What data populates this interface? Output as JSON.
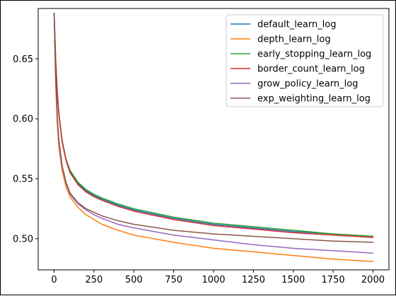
{
  "chart_data": {
    "type": "line",
    "title": "",
    "xlabel": "",
    "ylabel": "",
    "xlim": [
      -100,
      2100
    ],
    "ylim": [
      0.474,
      0.692
    ],
    "x_ticks": [
      0,
      250,
      500,
      750,
      1000,
      1250,
      1500,
      1750,
      2000
    ],
    "y_ticks": [
      0.5,
      0.55,
      0.6,
      0.65
    ],
    "x_tick_labels": [
      "0",
      "250",
      "500",
      "750",
      "1000",
      "1250",
      "1500",
      "1750",
      "2000"
    ],
    "y_tick_labels": [
      "0.50",
      "0.55",
      "0.60",
      "0.65"
    ],
    "grid": false,
    "legend_position": "top-right",
    "x": [
      0,
      5,
      10,
      20,
      30,
      50,
      75,
      100,
      150,
      200,
      250,
      300,
      400,
      500,
      750,
      1000,
      1250,
      1500,
      1750,
      2000
    ],
    "series": [
      {
        "name": "default_learn_log",
        "color": "#1f77b4",
        "values": [
          0.688,
          0.668,
          0.648,
          0.622,
          0.604,
          0.582,
          0.566,
          0.556,
          0.546,
          0.54,
          0.536,
          0.533,
          0.528,
          0.524,
          0.517,
          0.512,
          0.509,
          0.506,
          0.504,
          0.502
        ]
      },
      {
        "name": "depth_learn_log",
        "color": "#ff7f0e",
        "values": [
          0.688,
          0.656,
          0.628,
          0.595,
          0.576,
          0.557,
          0.543,
          0.535,
          0.526,
          0.52,
          0.516,
          0.512,
          0.507,
          0.503,
          0.497,
          0.492,
          0.489,
          0.486,
          0.483,
          0.481
        ]
      },
      {
        "name": "early_stopping_learn_log",
        "color": "#2ca02c",
        "values": [
          0.688,
          0.668,
          0.648,
          0.622,
          0.604,
          0.582,
          0.566,
          0.557,
          0.547,
          0.541,
          0.537,
          0.534,
          0.529,
          0.525,
          0.518,
          0.513,
          0.51,
          0.507,
          0.504,
          0.502
        ]
      },
      {
        "name": "border_count_learn_log",
        "color": "#d62728",
        "values": [
          0.688,
          0.668,
          0.647,
          0.621,
          0.603,
          0.581,
          0.565,
          0.555,
          0.545,
          0.539,
          0.535,
          0.532,
          0.527,
          0.523,
          0.516,
          0.511,
          0.508,
          0.505,
          0.503,
          0.501
        ]
      },
      {
        "name": "grow_policy_learn_log",
        "color": "#9467bd",
        "values": [
          0.688,
          0.658,
          0.632,
          0.599,
          0.58,
          0.56,
          0.546,
          0.537,
          0.529,
          0.524,
          0.52,
          0.517,
          0.512,
          0.509,
          0.503,
          0.499,
          0.495,
          0.492,
          0.49,
          0.488
        ]
      },
      {
        "name": "exp_weighting_learn_log",
        "color": "#8c564b",
        "values": [
          0.688,
          0.662,
          0.636,
          0.601,
          0.582,
          0.561,
          0.547,
          0.538,
          0.53,
          0.525,
          0.522,
          0.519,
          0.515,
          0.512,
          0.507,
          0.504,
          0.502,
          0.5,
          0.498,
          0.497
        ]
      }
    ]
  }
}
